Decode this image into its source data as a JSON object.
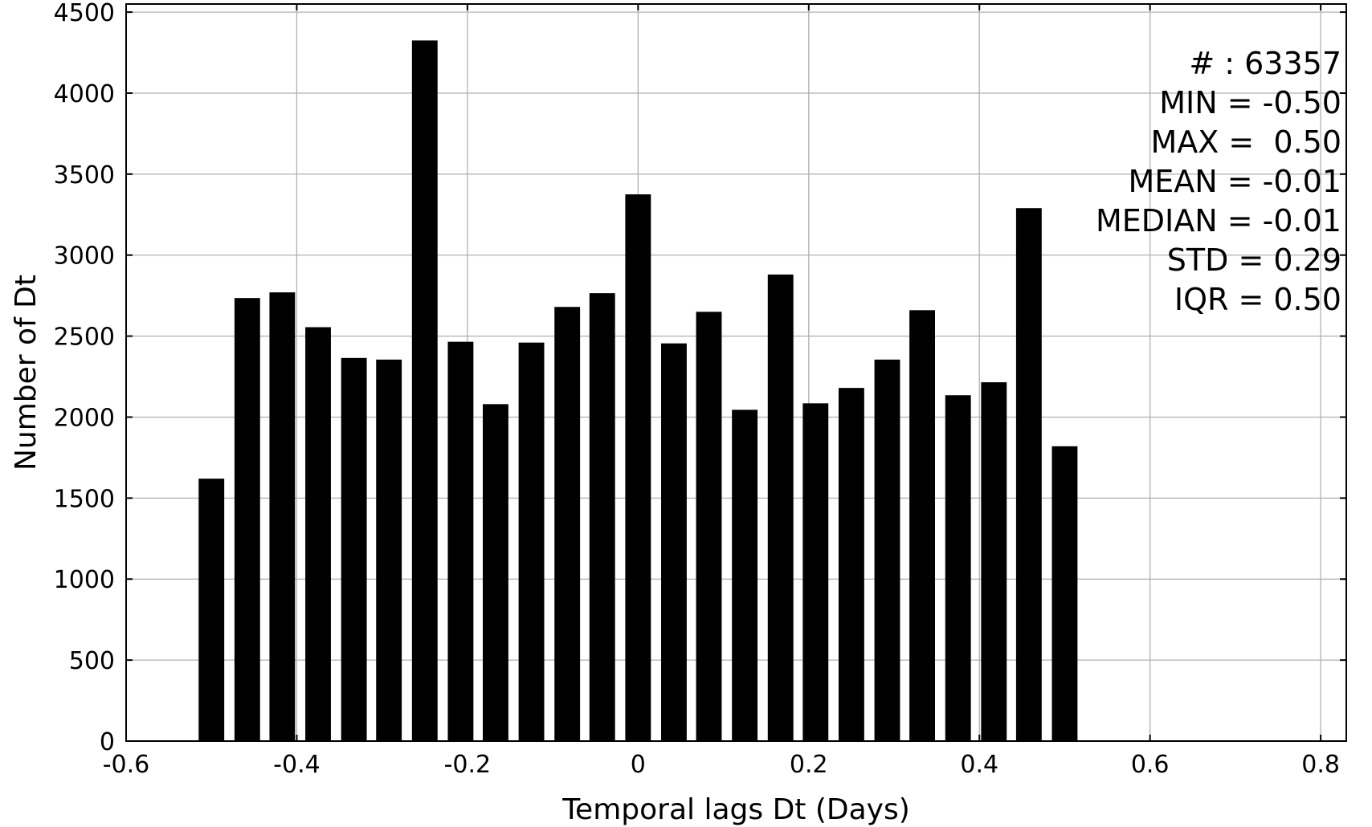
{
  "chart_data": {
    "type": "bar",
    "xlabel": "Temporal lags Dt (Days)",
    "ylabel": "Number of Dt",
    "xlim": [
      -0.6,
      0.83
    ],
    "ylim": [
      0,
      4550
    ],
    "xticks": [
      -0.6,
      -0.4,
      -0.2,
      0,
      0.2,
      0.4,
      0.6,
      0.8
    ],
    "xtick_labels": [
      "-0.6",
      "-0.4",
      "-0.2",
      "0",
      "0.2",
      "0.4",
      "0.6",
      "0.8"
    ],
    "yticks": [
      0,
      500,
      1000,
      1500,
      2000,
      2500,
      3000,
      3500,
      4000,
      4500
    ],
    "ytick_labels": [
      "0",
      "500",
      "1000",
      "1500",
      "2000",
      "2500",
      "3000",
      "3500",
      "4000",
      "4500"
    ],
    "grid": true,
    "bar_width": 0.03,
    "bar_color": "#000000",
    "x": [
      -0.5,
      -0.458,
      -0.417,
      -0.375,
      -0.333,
      -0.292,
      -0.25,
      -0.208,
      -0.167,
      -0.125,
      -0.083,
      -0.042,
      0,
      0.042,
      0.083,
      0.125,
      0.167,
      0.208,
      0.25,
      0.292,
      0.333,
      0.375,
      0.417,
      0.458,
      0.5
    ],
    "values": [
      1620,
      2735,
      2770,
      2555,
      2365,
      2355,
      4325,
      2465,
      2080,
      2460,
      2680,
      2765,
      3375,
      2455,
      2650,
      2045,
      2880,
      2085,
      2180,
      2355,
      2660,
      2135,
      2215,
      3290,
      1820
    ],
    "annotations": [
      "# : 63357",
      "MIN = -0.50",
      "MAX =  0.50",
      "MEAN = -0.01",
      "MEDIAN = -0.01",
      "STD = 0.29",
      "IQR = 0.50"
    ]
  }
}
